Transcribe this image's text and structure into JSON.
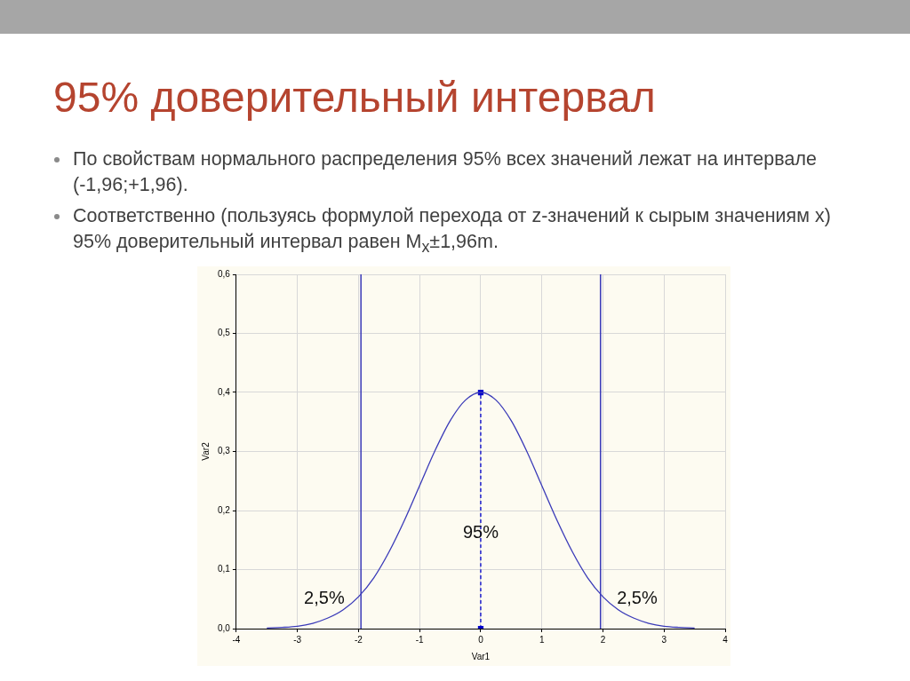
{
  "chart_data": {
    "type": "line",
    "title": "95% доверительный интервал",
    "annotations": [
      "По свойствам нормального распределения 95% всех значений лежат на интервале (-1,96;+1,96).",
      "Соответственно (пользуясь формулой перехода от z-значений к сырым значениям x) 95% доверительный интервал равен M$_{x}$±1,96m.",
      {
        "text": "95%",
        "x": 0,
        "y": 0.162
      },
      "2,5%",
      "2,5%"
    ],
    "xlabel": "Var1",
    "ylabel": "Var2",
    "series": [
      {
        "color": "#3a3ab8",
        "x": [
          -3.5,
          -3.25,
          -3,
          -2.75,
          -2.5,
          -2.25,
          -2,
          -1.75,
          -1.5,
          -1.25,
          -1,
          -0.75,
          -0.5,
          -0.25,
          0,
          0.25,
          0.5,
          0.75,
          1,
          1.25,
          1.5,
          1.75,
          2,
          2.25,
          2.5,
          2.75,
          3,
          3.25,
          3.5
        ],
        "values": [
          0.001,
          0.002,
          0.004,
          0.009,
          0.018,
          0.032,
          0.054,
          0.086,
          0.13,
          0.183,
          0.242,
          0.301,
          0.352,
          0.387,
          0.4,
          0.387,
          0.352,
          0.301,
          0.242,
          0.183,
          0.13,
          0.086,
          0.054,
          0.032,
          0.018,
          0.009,
          0.004,
          0.002,
          0.001
        ]
      },
      {
        "color": "#0000cc",
        "x": [
          0,
          0
        ],
        "values": [
          0,
          0.4
        ],
        "line_style": "dashed",
        "marker": "square"
      }
    ],
    "ref_lines": [
      {
        "axis": "x",
        "value": -1.96,
        "color": "#3a3ab8"
      },
      {
        "axis": "x",
        "value": 1.96,
        "color": "#3a3ab8"
      }
    ],
    "xlim": [
      -4,
      4
    ],
    "xticks": [
      -4,
      -3,
      -2,
      -1,
      0,
      1,
      2,
      3,
      4
    ],
    "ylim": [
      0,
      0.6
    ],
    "yticks": [
      {
        "value": 0,
        "label": "0,0"
      },
      {
        "value": 0.1,
        "label": "0,1"
      },
      {
        "value": 0.2,
        "label": "0,2"
      },
      {
        "value": 0.3,
        "label": "0,3"
      },
      {
        "value": 0.4,
        "label": "0,4"
      },
      {
        "value": 0.5,
        "label": "0,5"
      },
      {
        "value": 0.6,
        "label": "0,6"
      }
    ],
    "grid": true,
    "legend": false,
    "marker": "none",
    "line_style": "solid"
  }
}
